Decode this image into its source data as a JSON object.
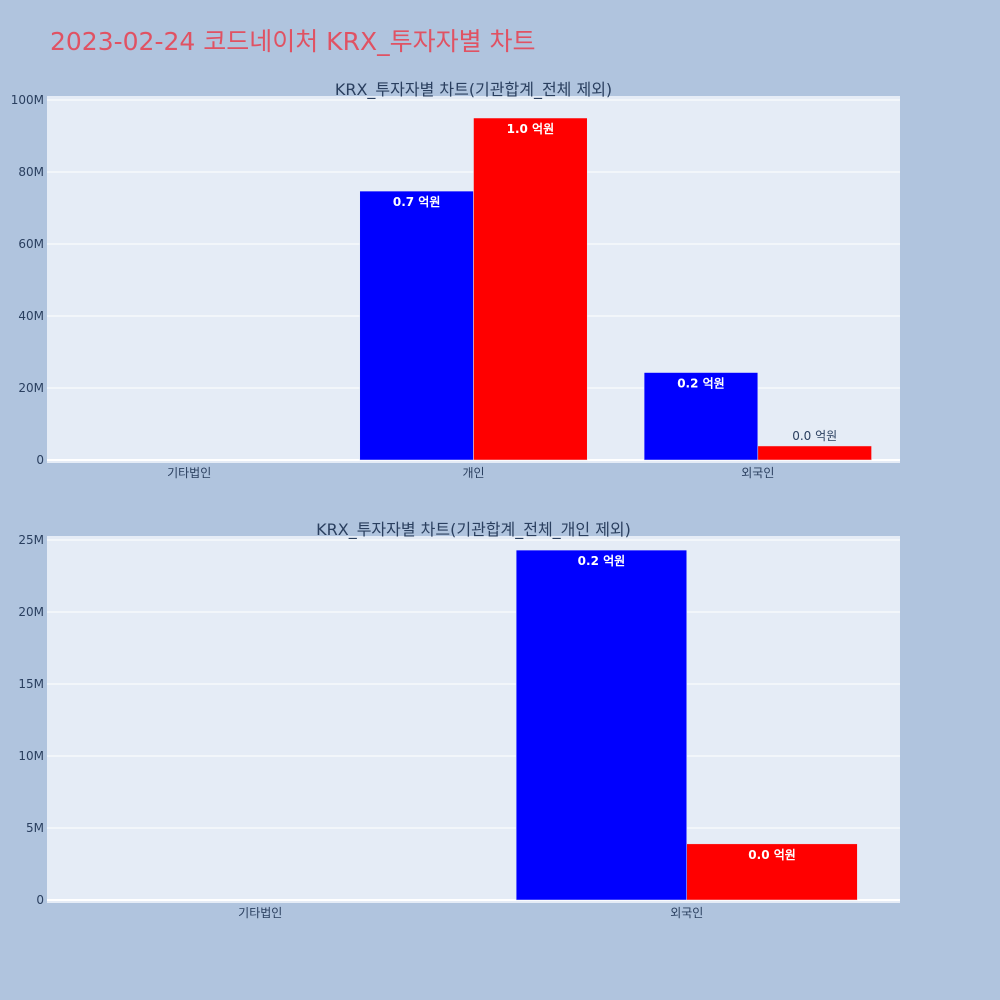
{
  "page": {
    "title": "2023-02-24 코드네이처 KRX_투자자별 차트",
    "colors": {
      "background": "#b0c4de",
      "plot_bg": "#e5ecf6",
      "title": "#e05263",
      "series_buy": "#0000ff",
      "series_sell": "#ff0000"
    }
  },
  "chart_data": [
    {
      "type": "bar",
      "title": "KRX_투자자별 차트(기관합계_전체 제외)",
      "categories": [
        "기타법인",
        "개인",
        "외국인"
      ],
      "series": [
        {
          "color": "#0000ff",
          "values": [
            0,
            74700000,
            24300000
          ],
          "labels": [
            "",
            "0.7 억원",
            "0.2 억원"
          ]
        },
        {
          "color": "#ff0000",
          "values": [
            0,
            95000000,
            3900000
          ],
          "labels": [
            "",
            "1.0 억원",
            "0.0 억원"
          ]
        }
      ],
      "ylim": [
        0,
        100000000
      ],
      "yticks": [
        0,
        20000000,
        40000000,
        60000000,
        80000000,
        100000000
      ],
      "ytick_labels": [
        "0",
        "20M",
        "40M",
        "60M",
        "80M",
        "100M"
      ],
      "grid": true
    },
    {
      "type": "bar",
      "title": "KRX_투자자별 차트(기관합계_전체_개인 제외)",
      "categories": [
        "기타법인",
        "외국인"
      ],
      "series": [
        {
          "color": "#0000ff",
          "values": [
            0,
            24300000
          ],
          "labels": [
            "",
            "0.2 억원"
          ]
        },
        {
          "color": "#ff0000",
          "values": [
            0,
            3900000
          ],
          "labels": [
            "",
            "0.0 억원"
          ]
        }
      ],
      "ylim": [
        0,
        25000000
      ],
      "yticks": [
        0,
        5000000,
        10000000,
        15000000,
        20000000,
        25000000
      ],
      "ytick_labels": [
        "0",
        "5M",
        "10M",
        "15M",
        "20M",
        "25M"
      ],
      "grid": true
    }
  ]
}
